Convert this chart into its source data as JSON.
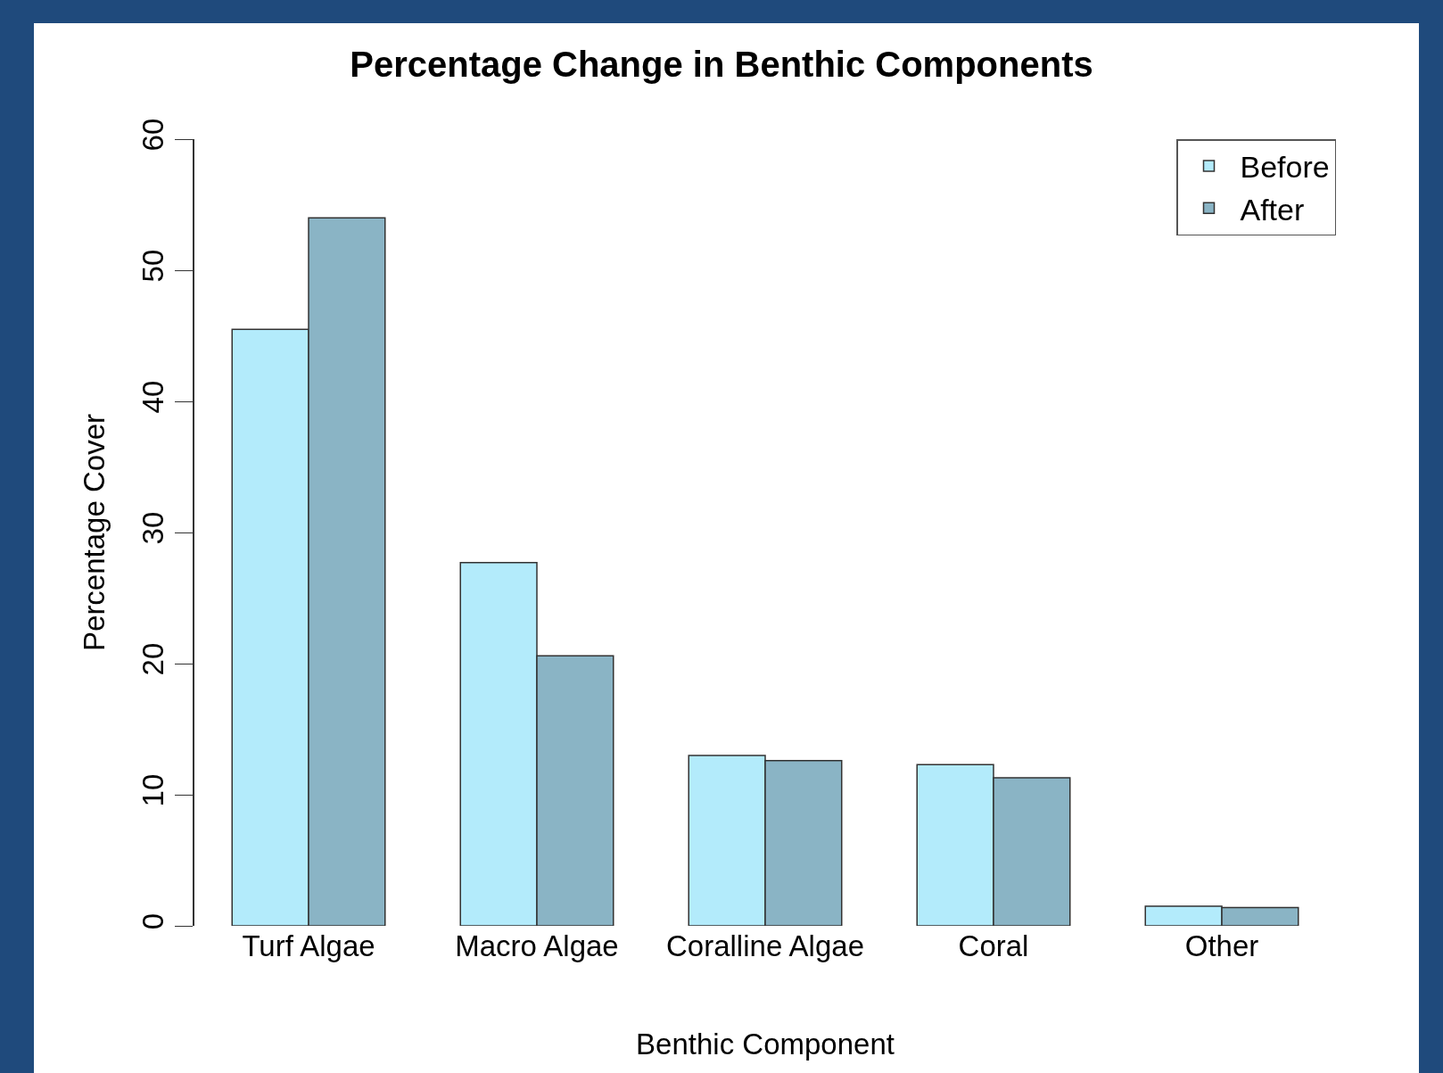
{
  "chart_data": {
    "type": "bar",
    "title": "Percentage Change in Benthic Components",
    "xlabel": "Benthic Component",
    "ylabel": "Percentage Cover",
    "categories": [
      "Turf Algae",
      "Macro Algae",
      "Coralline Algae",
      "Coral",
      "Other"
    ],
    "series": [
      {
        "name": "Before",
        "color": "#b3ebfb",
        "values": [
          45.5,
          27.7,
          13.0,
          12.3,
          1.5
        ]
      },
      {
        "name": "After",
        "color": "#8ab4c5",
        "values": [
          54.0,
          20.6,
          12.6,
          11.3,
          1.4
        ]
      }
    ],
    "ylim": [
      0,
      60
    ],
    "yticks": [
      0,
      10,
      20,
      30,
      40,
      50,
      60
    ],
    "legend": "top right"
  }
}
